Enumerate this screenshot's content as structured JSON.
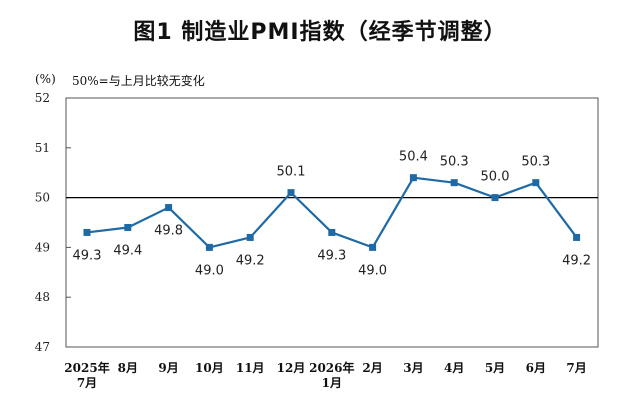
{
  "title": "图1  制造业PMI指数（经季节调整）",
  "unit_label": "(%)",
  "note": "50%=与上月比较无变化",
  "chart_data": {
    "type": "line",
    "title": "图1  制造业PMI指数（经季节调整）",
    "xlabel": "",
    "ylabel": "(%)",
    "ylim": [
      47,
      52
    ],
    "yticks": [
      "52",
      "51",
      "50",
      "49",
      "48",
      "47"
    ],
    "reference_line": 50,
    "grid": false,
    "categories": [
      [
        "2025年",
        "7月"
      ],
      [
        "8月"
      ],
      [
        "9月"
      ],
      [
        "10月"
      ],
      [
        "11月"
      ],
      [
        "12月"
      ],
      [
        "2026年",
        "1月"
      ],
      [
        "2月"
      ],
      [
        "3月"
      ],
      [
        "4月"
      ],
      [
        "5月"
      ],
      [
        "6月"
      ],
      [
        "7月"
      ]
    ],
    "series": [
      {
        "color": "#1f6aa5",
        "values": [
          49.3,
          49.4,
          49.8,
          49.0,
          49.2,
          50.1,
          49.3,
          49.0,
          50.4,
          50.3,
          50.0,
          50.3,
          49.2
        ],
        "labels": [
          "49.3",
          "49.4",
          "49.8",
          "49.0",
          "49.2",
          "50.1",
          "49.3",
          "49.0",
          "50.4",
          "50.3",
          "50.0",
          "50.3",
          "49.2"
        ],
        "label_positions": [
          "below",
          "below",
          "below",
          "below",
          "below",
          "above",
          "below",
          "below",
          "above",
          "above",
          "above",
          "above",
          "below"
        ]
      }
    ]
  }
}
